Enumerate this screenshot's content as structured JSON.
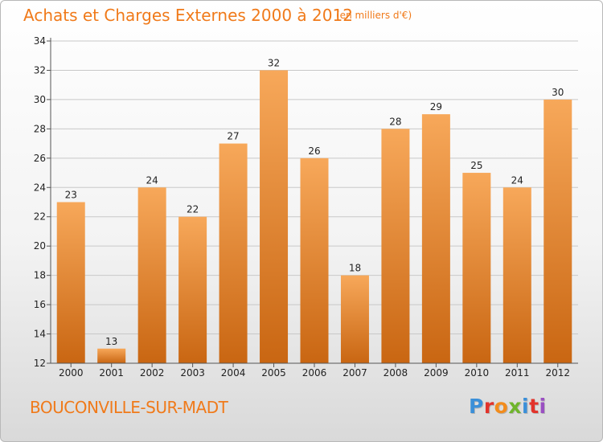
{
  "header": {
    "title": "Achats et Charges Externes 2000 à 2012",
    "subtitle": "(en milliers d'€)"
  },
  "footer": {
    "commune": "BOUCONVILLE-SUR-MADT",
    "logo_text": "Proxiti",
    "logo_colors": [
      "#3b8fd8",
      "#e2332b",
      "#f28c1c",
      "#6fb52c",
      "#3b8fd8",
      "#e2332b",
      "#9a4fc2"
    ]
  },
  "colors": {
    "bar_top": "#f7a85a",
    "bar_bottom": "#c96612",
    "grid": "#c8c8c8",
    "axis": "#555555",
    "title": "#f07a1a"
  },
  "chart_data": {
    "type": "bar",
    "categories": [
      "2000",
      "2001",
      "2002",
      "2003",
      "2004",
      "2005",
      "2006",
      "2007",
      "2008",
      "2009",
      "2010",
      "2011",
      "2012"
    ],
    "values": [
      23,
      13,
      24,
      22,
      27,
      32,
      26,
      18,
      28,
      29,
      25,
      24,
      30
    ],
    "data_labels": [
      "23",
      "13",
      "24",
      "22",
      "27",
      "32",
      "26",
      "18",
      "28",
      "29",
      "25",
      "24",
      "30"
    ],
    "title": "Achats et Charges Externes 2000 à 2012",
    "subtitle": "(en milliers d'€)",
    "xlabel": "",
    "ylabel": "",
    "ylim": [
      12,
      34
    ],
    "yticks": [
      "12",
      "14",
      "16",
      "18",
      "20",
      "22",
      "24",
      "26",
      "28",
      "30",
      "32",
      "34"
    ],
    "grid": true,
    "legend": "none"
  }
}
